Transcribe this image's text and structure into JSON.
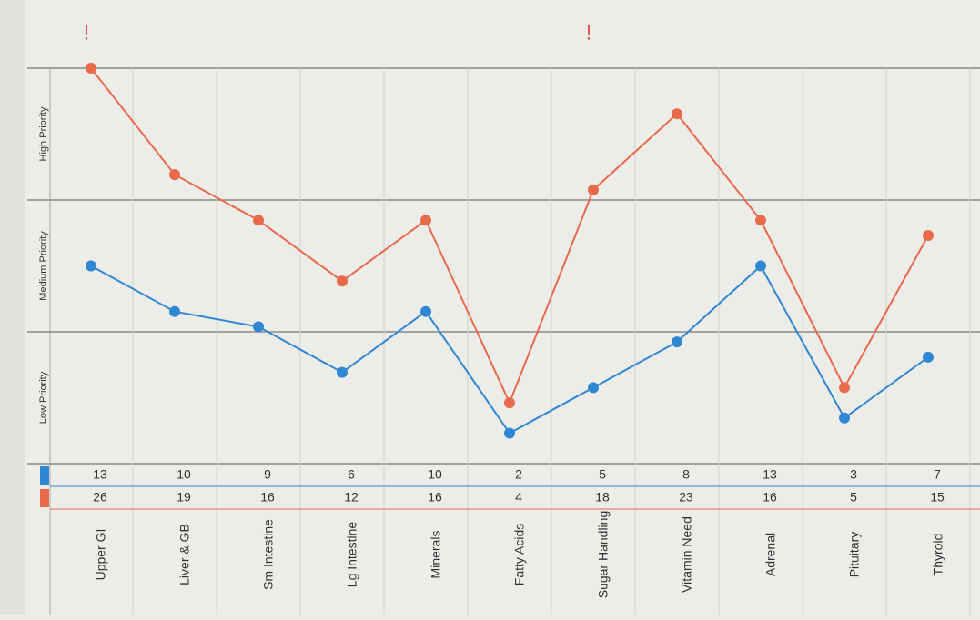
{
  "chart_data": {
    "type": "line",
    "bands": [
      "Low Priority",
      "Medium Priority",
      "High Priority"
    ],
    "categories": [
      "Upper GI",
      "Liver & GB",
      "Sm Intestine",
      "Lg Intestine",
      "Minerals",
      "Fatty Acids",
      "Sugar Handling",
      "Vitamin Need",
      "Adrenal",
      "Pituitary",
      "Thyroid"
    ],
    "series": [
      {
        "color": "#2f87d3",
        "values": [
          13,
          10,
          9,
          6,
          10,
          2,
          5,
          8,
          13,
          3,
          7
        ]
      },
      {
        "color": "#e9694b",
        "values": [
          26,
          19,
          16,
          12,
          16,
          4,
          18,
          23,
          16,
          5,
          15
        ]
      }
    ],
    "ylim": [
      0,
      26
    ],
    "annotations": [
      {
        "label": "!",
        "category": 0
      },
      {
        "label": "!",
        "category": 6
      }
    ]
  }
}
